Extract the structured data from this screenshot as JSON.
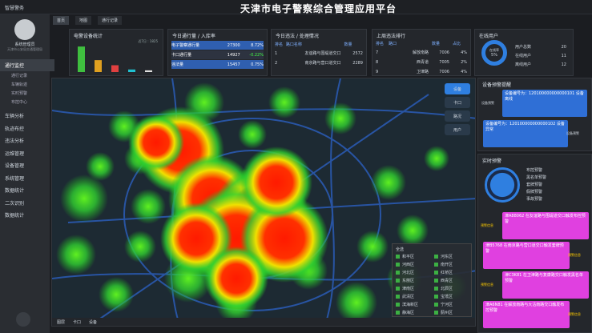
{
  "header": {
    "system": "智慧警务",
    "title": "天津市电子警察综合管理应用平台",
    "tabs": [
      "首页",
      "地图",
      "通行记录"
    ]
  },
  "user": {
    "name": "系统管理员",
    "org": "天津市公安局交通管理局"
  },
  "menu_active": {
    "label": "通行监控",
    "items": [
      "通行记录",
      "车辆轨迹",
      "实时预警",
      "布控中心"
    ]
  },
  "menu": [
    "车辆分析",
    "轨迹布控",
    "违法分析",
    "运维管理",
    "设备管理",
    "系统管理",
    "数据统计",
    "二次识别",
    "数据统计"
  ],
  "device_stats": {
    "title": "电警设备统计",
    "range": "近7日 : 1825",
    "values": [
      30,
      14,
      8,
      3,
      2
    ],
    "colors": [
      "#3fbf3f",
      "#e0a020",
      "#e04040",
      "#20c0d0",
      "#e0e0e0"
    ],
    "ylim": [
      0,
      32
    ]
  },
  "traffic": {
    "title": "今日通行量 / 入库率",
    "rows": [
      [
        "电子警察通行量",
        "27300",
        "8.72%"
      ],
      [
        "卡口通行量",
        "14927",
        "-0.22%"
      ],
      [
        "违法量",
        "15457",
        "0.75%"
      ]
    ]
  },
  "violations": {
    "title": "今日违法 / 处理情况",
    "header": [
      "排名",
      "路口名称",
      "数量"
    ],
    "rows": [
      [
        "1",
        "友谊路与围堤道交口",
        "2572"
      ],
      [
        "2",
        "南京路与营口道交口",
        "2289"
      ]
    ]
  },
  "ranking": {
    "title": "上周违法排行",
    "header": [
      "排名",
      "路口",
      "数量",
      "占比"
    ],
    "rows": [
      [
        "7",
        "解放南路",
        "7006",
        "4%"
      ],
      [
        "8",
        "西青道",
        "7005",
        "2%"
      ],
      [
        "9",
        "卫津路",
        "7006",
        "4%"
      ]
    ]
  },
  "online": {
    "title": "在线用户",
    "rate_label": "在线率",
    "rate": "5%",
    "rows": [
      [
        "用户总数",
        "20"
      ],
      [
        "在线用户",
        "11"
      ],
      [
        "离线用户",
        "12"
      ]
    ]
  },
  "map": {
    "buttons": [
      "设备",
      "卡口",
      "路况",
      "用户"
    ],
    "legend_title": "全选",
    "districts": [
      "和平区",
      "河东区",
      "河西区",
      "南开区",
      "河北区",
      "红桥区",
      "东丽区",
      "西青区",
      "津南区",
      "北辰区",
      "武清区",
      "宝坻区",
      "滨海新区",
      "宁河区",
      "静海区",
      "蓟州区"
    ],
    "footer": [
      "图层",
      "卡口",
      "设备"
    ]
  },
  "alerts": {
    "title": "设备预警提醒",
    "messages": [
      "设备编号为：120100000000000101 设备离线",
      "设备编号为：120100000000000102 设备异常"
    ],
    "tag": "设备预警"
  },
  "realtime": {
    "title": "实时预警",
    "items": [
      "布控预警",
      "黑名单预警",
      "套牌预警",
      "假牌预警",
      "事故预警"
    ],
    "messages": [
      "津A88062 在友谊路与围堤道交口触发布控预警",
      "津B5768 在南京路与营口道交口触发套牌预警",
      "津C3K81 在卫津路与复康路交口触发黑名单预警",
      "津A6N81 在解放南路与大沽南路交口触发布控预警"
    ],
    "tag": "预警信息"
  }
}
